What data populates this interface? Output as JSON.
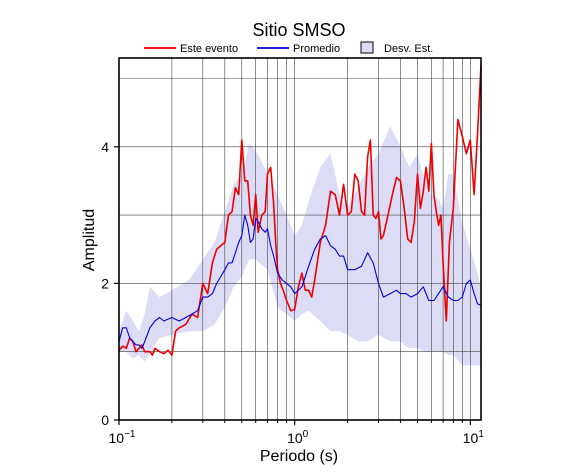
{
  "chart_data": {
    "type": "line",
    "title": "Sitio SMSO",
    "xlabel": "Periodo (s)",
    "ylabel": "Amplitud",
    "xscale": "log",
    "xlim": [
      0.1,
      11.5
    ],
    "ylim": [
      0,
      5.3
    ],
    "grid": true,
    "legend_position": "top",
    "x_ticks": [
      {
        "value": 0.1,
        "base": "10",
        "exp": "−1"
      },
      {
        "value": 1,
        "base": "10",
        "exp": "0"
      },
      {
        "value": 10,
        "base": "10",
        "exp": "1"
      }
    ],
    "y_ticks": [
      0,
      2,
      4
    ],
    "legend": [
      {
        "label": "Este evento",
        "kind": "line",
        "color": "#ee0000"
      },
      {
        "label": "Promedio",
        "kind": "line",
        "color": "#0000dd"
      },
      {
        "label": "Desv. Est.",
        "kind": "patch",
        "color": "#dcdcf7"
      }
    ],
    "band": {
      "name": "Desv. Est.",
      "color": "#dcdcf7",
      "x": [
        0.1,
        0.11,
        0.12,
        0.13,
        0.14,
        0.15,
        0.17,
        0.2,
        0.25,
        0.3,
        0.35,
        0.4,
        0.45,
        0.5,
        0.55,
        0.6,
        0.7,
        0.8,
        0.9,
        1.0,
        1.1,
        1.2,
        1.4,
        1.6,
        1.8,
        2.0,
        2.3,
        2.6,
        3.0,
        3.5,
        4.0,
        4.5,
        5.0,
        5.5,
        6.0,
        6.5,
        7.0,
        7.5,
        8.0,
        9.0,
        10.0,
        11.0,
        11.5
      ],
      "upper": [
        1.3,
        1.6,
        1.45,
        1.3,
        1.55,
        1.95,
        1.8,
        1.9,
        2.05,
        2.35,
        2.6,
        3.05,
        3.45,
        3.6,
        4.05,
        3.95,
        3.6,
        3.3,
        3.0,
        2.7,
        2.85,
        3.2,
        3.7,
        3.9,
        3.3,
        3.1,
        3.4,
        3.7,
        3.9,
        4.3,
        4.0,
        3.7,
        3.9,
        3.5,
        3.3,
        3.25,
        3.1,
        3.6,
        3.6,
        2.9,
        2.5,
        2.15,
        1.9
      ],
      "lower": [
        1.0,
        1.0,
        0.9,
        0.95,
        0.85,
        1.0,
        1.2,
        1.25,
        1.3,
        1.3,
        1.4,
        1.65,
        1.95,
        2.1,
        2.35,
        2.35,
        2.2,
        1.65,
        1.55,
        1.45,
        1.55,
        1.6,
        1.45,
        1.3,
        1.3,
        1.25,
        1.15,
        1.15,
        1.25,
        1.15,
        1.15,
        1.05,
        1.05,
        1.0,
        1.0,
        1.0,
        1.0,
        0.95,
        0.95,
        0.8,
        0.8,
        0.8,
        0.8
      ]
    },
    "series": [
      {
        "name": "Este evento",
        "color": "#ee0000",
        "x": [
          0.1,
          0.105,
          0.11,
          0.115,
          0.12,
          0.125,
          0.13,
          0.135,
          0.14,
          0.15,
          0.155,
          0.16,
          0.17,
          0.18,
          0.19,
          0.2,
          0.21,
          0.22,
          0.24,
          0.26,
          0.28,
          0.3,
          0.32,
          0.34,
          0.36,
          0.38,
          0.4,
          0.42,
          0.44,
          0.46,
          0.48,
          0.5,
          0.52,
          0.54,
          0.56,
          0.58,
          0.6,
          0.62,
          0.65,
          0.68,
          0.7,
          0.73,
          0.76,
          0.78,
          0.8,
          0.83,
          0.86,
          0.9,
          0.95,
          1.0,
          1.05,
          1.1,
          1.15,
          1.2,
          1.25,
          1.3,
          1.4,
          1.5,
          1.6,
          1.7,
          1.8,
          1.9,
          2.0,
          2.1,
          2.2,
          2.3,
          2.4,
          2.5,
          2.6,
          2.7,
          2.8,
          2.9,
          3.0,
          3.1,
          3.2,
          3.4,
          3.6,
          3.8,
          4.0,
          4.2,
          4.4,
          4.6,
          4.8,
          5.0,
          5.2,
          5.4,
          5.6,
          5.8,
          6.0,
          6.2,
          6.4,
          6.6,
          6.8,
          7.0,
          7.3,
          7.6,
          8.0,
          8.5,
          9.0,
          9.5,
          10.0,
          10.5,
          11.0,
          11.5
        ],
        "y": [
          1.02,
          1.08,
          1.05,
          1.2,
          1.15,
          1.0,
          1.05,
          1.1,
          1.0,
          1.0,
          0.95,
          1.05,
          1.0,
          0.97,
          1.02,
          0.95,
          1.3,
          1.35,
          1.4,
          1.55,
          1.5,
          2.0,
          1.85,
          2.3,
          2.5,
          2.55,
          2.6,
          3.0,
          3.05,
          3.4,
          3.3,
          4.1,
          3.5,
          3.5,
          3.0,
          2.85,
          3.3,
          2.75,
          3.0,
          3.05,
          3.6,
          3.7,
          3.15,
          2.6,
          2.2,
          2.0,
          1.9,
          1.75,
          1.6,
          1.62,
          1.95,
          2.15,
          1.9,
          1.9,
          1.8,
          2.05,
          2.6,
          2.85,
          3.35,
          3.3,
          3.0,
          3.45,
          3.0,
          3.05,
          3.6,
          3.5,
          3.05,
          3.0,
          3.85,
          4.1,
          3.0,
          2.95,
          3.05,
          2.65,
          2.7,
          3.0,
          3.3,
          3.55,
          3.5,
          3.1,
          2.65,
          2.6,
          2.9,
          3.6,
          3.1,
          3.35,
          3.7,
          3.35,
          4.05,
          3.3,
          3.05,
          2.85,
          3.0,
          2.3,
          1.45,
          2.6,
          3.1,
          4.4,
          4.15,
          3.9,
          4.1,
          3.3,
          4.2,
          5.2
        ]
      },
      {
        "name": "Promedio",
        "color": "#0000dd",
        "x": [
          0.1,
          0.105,
          0.11,
          0.115,
          0.12,
          0.125,
          0.13,
          0.135,
          0.14,
          0.15,
          0.16,
          0.17,
          0.18,
          0.2,
          0.22,
          0.24,
          0.26,
          0.28,
          0.3,
          0.32,
          0.34,
          0.36,
          0.38,
          0.4,
          0.42,
          0.44,
          0.46,
          0.48,
          0.5,
          0.52,
          0.54,
          0.56,
          0.58,
          0.6,
          0.62,
          0.65,
          0.68,
          0.7,
          0.73,
          0.76,
          0.8,
          0.85,
          0.9,
          0.95,
          1.0,
          1.1,
          1.2,
          1.3,
          1.4,
          1.5,
          1.6,
          1.7,
          1.8,
          1.9,
          2.0,
          2.2,
          2.4,
          2.6,
          2.8,
          3.0,
          3.2,
          3.5,
          3.8,
          4.0,
          4.3,
          4.6,
          5.0,
          5.4,
          5.8,
          6.2,
          6.6,
          7.0,
          7.5,
          8.0,
          8.5,
          9.0,
          9.5,
          10.0,
          10.5,
          11.0,
          11.5
        ],
        "y": [
          1.15,
          1.35,
          1.35,
          1.2,
          1.15,
          1.1,
          1.1,
          1.05,
          1.15,
          1.35,
          1.45,
          1.5,
          1.45,
          1.5,
          1.45,
          1.5,
          1.55,
          1.6,
          1.8,
          1.8,
          1.85,
          2.0,
          2.1,
          2.2,
          2.3,
          2.3,
          2.45,
          2.6,
          2.7,
          3.0,
          2.85,
          2.6,
          2.65,
          2.95,
          2.9,
          2.8,
          2.75,
          2.8,
          2.55,
          2.4,
          2.15,
          2.05,
          2.0,
          1.95,
          1.85,
          1.95,
          2.25,
          2.5,
          2.65,
          2.7,
          2.55,
          2.5,
          2.4,
          2.4,
          2.2,
          2.2,
          2.25,
          2.45,
          2.3,
          2.0,
          1.8,
          1.85,
          1.9,
          1.85,
          1.85,
          1.8,
          1.85,
          1.95,
          1.75,
          1.75,
          1.85,
          1.95,
          1.8,
          1.75,
          1.75,
          1.8,
          2.0,
          2.05,
          1.85,
          1.7,
          1.68
        ]
      }
    ]
  }
}
